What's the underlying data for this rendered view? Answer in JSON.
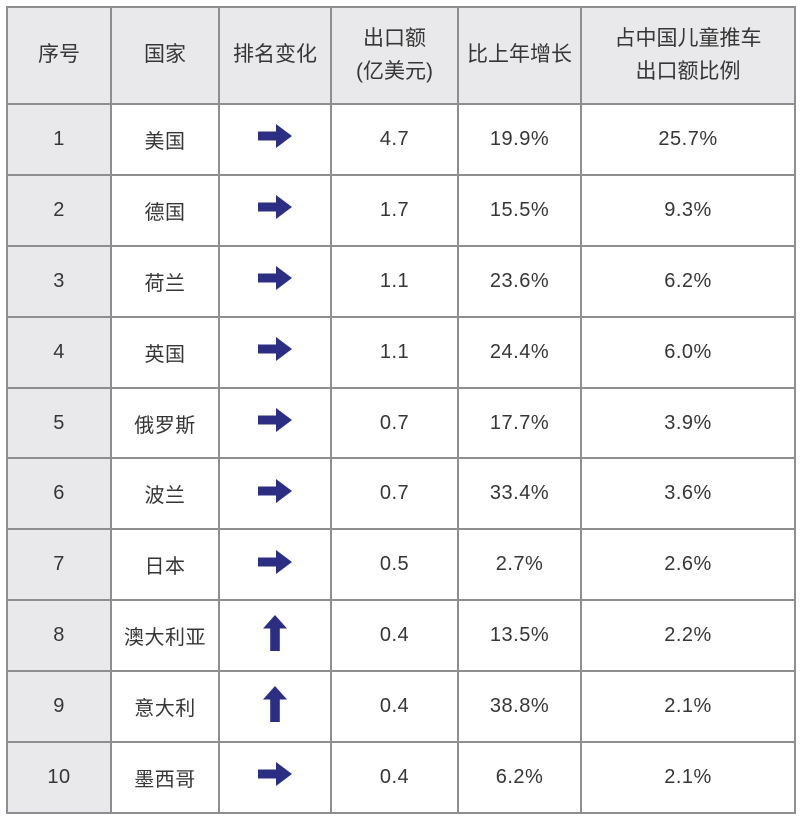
{
  "colors": {
    "arrow": "#2b2e83",
    "header_bg": "#e9e9eb",
    "border": "#8e8e91",
    "text": "#363636",
    "cell_bg": "#ffffff"
  },
  "icons": {
    "right": {
      "name": "right-arrow-icon",
      "glyph": "→"
    },
    "up": {
      "name": "up-arrow-icon",
      "glyph": "↑"
    }
  },
  "chart_data": {
    "type": "table",
    "columns": [
      {
        "key": "rank",
        "label": "序号"
      },
      {
        "key": "country",
        "label": "国家"
      },
      {
        "key": "rank_change",
        "label": "排名变化"
      },
      {
        "key": "export_value",
        "label": "出口额\n(亿美元)"
      },
      {
        "key": "yoy_growth",
        "label": "比上年增长"
      },
      {
        "key": "share",
        "label": "占中国儿童推车\n出口额比例"
      }
    ],
    "rows": [
      {
        "rank": "1",
        "country": "美国",
        "rank_change": "right",
        "export_value": "4.7",
        "yoy_growth": "19.9%",
        "share": "25.7%"
      },
      {
        "rank": "2",
        "country": "德国",
        "rank_change": "right",
        "export_value": "1.7",
        "yoy_growth": "15.5%",
        "share": "9.3%"
      },
      {
        "rank": "3",
        "country": "荷兰",
        "rank_change": "right",
        "export_value": "1.1",
        "yoy_growth": "23.6%",
        "share": "6.2%"
      },
      {
        "rank": "4",
        "country": "英国",
        "rank_change": "right",
        "export_value": "1.1",
        "yoy_growth": "24.4%",
        "share": "6.0%"
      },
      {
        "rank": "5",
        "country": "俄罗斯",
        "rank_change": "right",
        "export_value": "0.7",
        "yoy_growth": "17.7%",
        "share": "3.9%"
      },
      {
        "rank": "6",
        "country": "波兰",
        "rank_change": "right",
        "export_value": "0.7",
        "yoy_growth": "33.4%",
        "share": "3.6%"
      },
      {
        "rank": "7",
        "country": "日本",
        "rank_change": "right",
        "export_value": "0.5",
        "yoy_growth": "2.7%",
        "share": "2.6%"
      },
      {
        "rank": "8",
        "country": "澳大利亚",
        "rank_change": "up",
        "export_value": "0.4",
        "yoy_growth": "13.5%",
        "share": "2.2%"
      },
      {
        "rank": "9",
        "country": "意大利",
        "rank_change": "up",
        "export_value": "0.4",
        "yoy_growth": "38.8%",
        "share": "2.1%"
      },
      {
        "rank": "10",
        "country": "墨西哥",
        "rank_change": "right",
        "export_value": "0.4",
        "yoy_growth": "6.2%",
        "share": "2.1%"
      }
    ]
  }
}
